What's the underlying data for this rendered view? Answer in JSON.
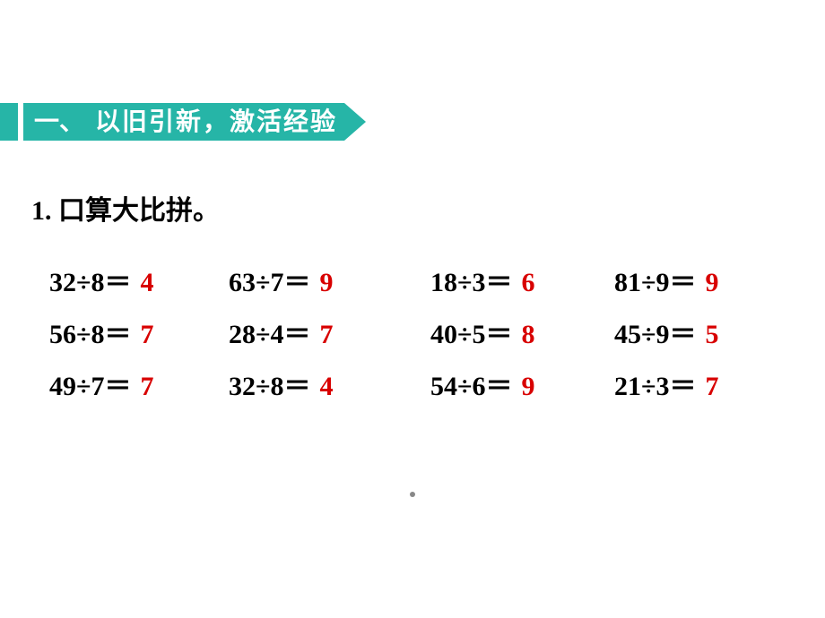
{
  "header": {
    "prefix": "一、",
    "title": "以旧引新，激活经验"
  },
  "subtitle": "1. 口算大比拼。",
  "colors": {
    "banner_bg": "#26b5a7",
    "banner_text": "#ffffff",
    "body_bg": "#ffffff",
    "expression_text": "#000000",
    "answer_text": "#d80000"
  },
  "typography": {
    "banner_fontsize": 28,
    "subtitle_fontsize": 30,
    "expression_fontsize": 30,
    "answer_fontsize": 30
  },
  "problems": {
    "rows": [
      [
        {
          "expr": "32÷8＝",
          "answer": "4"
        },
        {
          "expr": "63÷7＝",
          "answer": "9"
        },
        {
          "expr": "18÷3＝",
          "answer": "6"
        },
        {
          "expr": "81÷9＝",
          "answer": "9"
        }
      ],
      [
        {
          "expr": "56÷8＝",
          "answer": "7"
        },
        {
          "expr": "28÷4＝",
          "answer": "7"
        },
        {
          "expr": "40÷5＝",
          "answer": "8"
        },
        {
          "expr": "45÷9＝",
          "answer": "5"
        }
      ],
      [
        {
          "expr": "49÷7＝",
          "answer": "7"
        },
        {
          "expr": "32÷8＝",
          "answer": "4"
        },
        {
          "expr": "54÷6＝",
          "answer": "9"
        },
        {
          "expr": "21÷3＝",
          "answer": "7"
        }
      ]
    ]
  }
}
